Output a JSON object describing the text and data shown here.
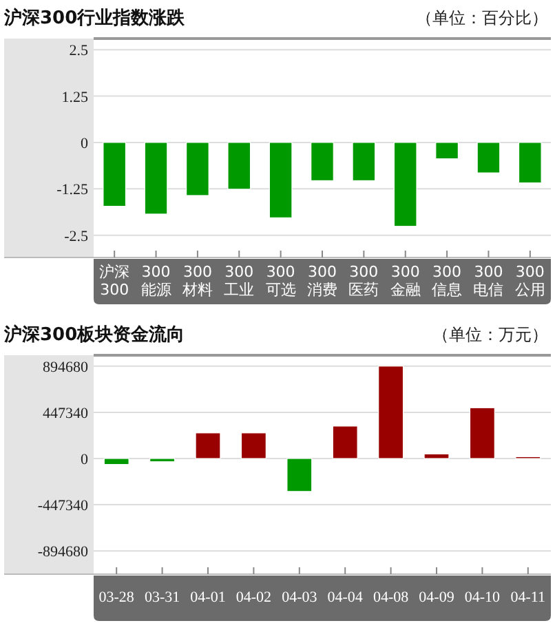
{
  "chart_data": [
    {
      "type": "bar",
      "title": "沪深300行业指数涨跌",
      "subtitle": "（单位：百分比）",
      "categories": [
        "沪深\n300",
        "300\n能源",
        "300\n材料",
        "300\n工业",
        "300\n可选",
        "300\n消费",
        "300\n医药",
        "300\n金融",
        "300\n信息",
        "300\n电信",
        "300\n公用"
      ],
      "values": [
        -1.72,
        -1.93,
        -1.43,
        -1.26,
        -2.03,
        -1.03,
        -1.03,
        -2.26,
        -0.44,
        -0.82,
        -1.09
      ],
      "colors": [
        "#009900",
        "#009900",
        "#009900",
        "#009900",
        "#009900",
        "#009900",
        "#009900",
        "#009900",
        "#009900",
        "#009900",
        "#009900"
      ],
      "ylim": [
        -3.1,
        2.8
      ],
      "yticks": [
        2.5,
        1.25,
        0,
        -1.25,
        -2.5
      ],
      "grid": "y"
    },
    {
      "type": "bar",
      "title": "沪深300板块资金流向",
      "subtitle": "（单位：万元）",
      "categories": [
        "03-28",
        "03-31",
        "04-01",
        "04-02",
        "04-03",
        "04-04",
        "04-08",
        "04-09",
        "04-10",
        "04-11"
      ],
      "values": [
        -57600,
        -31000,
        248000,
        248000,
        -319000,
        314000,
        894680,
        44300,
        491600,
        17700
      ],
      "colors": [
        "#009900",
        "#009900",
        "#990000",
        "#990000",
        "#009900",
        "#990000",
        "#990000",
        "#990000",
        "#990000",
        "#990000"
      ],
      "ylim": [
        -1120000,
        1000000
      ],
      "yticks": [
        894680,
        447340,
        0,
        -447340,
        -894680
      ],
      "grid": "y"
    }
  ]
}
